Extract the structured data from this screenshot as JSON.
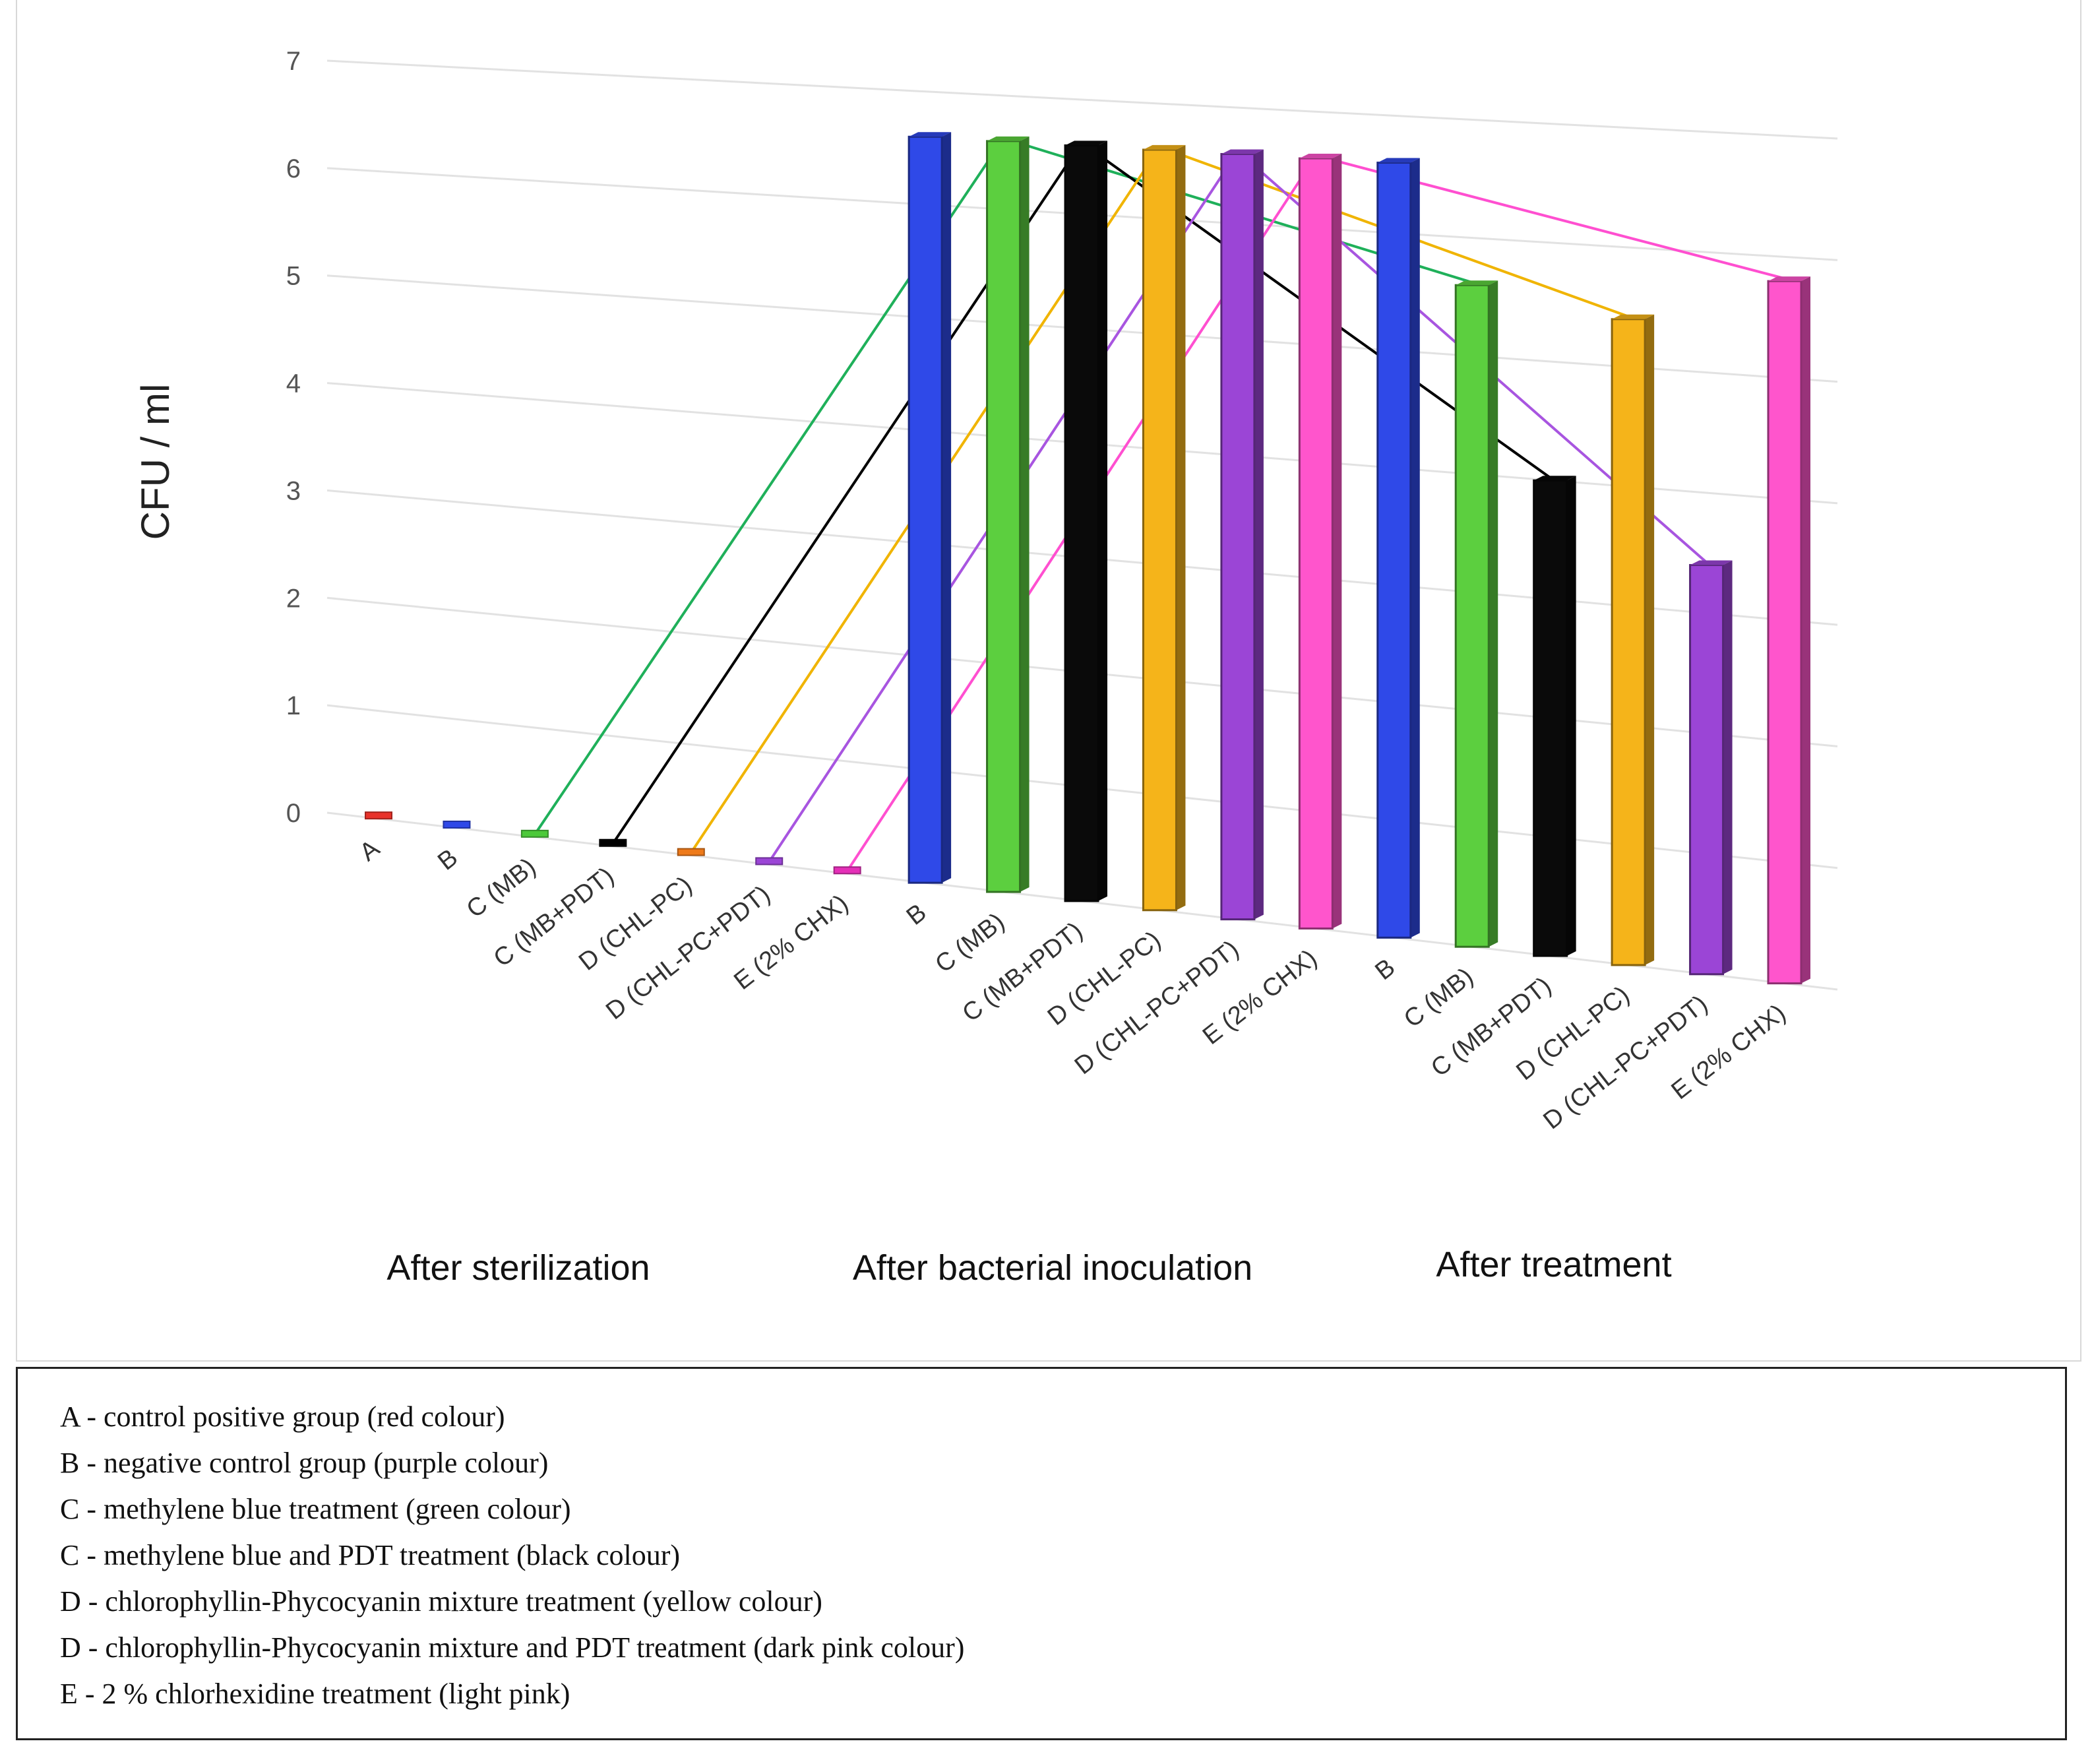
{
  "chart_data": {
    "type": "bar",
    "ylabel": "CFU / ml",
    "xlabel": "",
    "ylim": [
      0,
      7
    ],
    "y_ticks": [
      "0",
      "1",
      "2",
      "3",
      "4",
      "5",
      "6",
      "7"
    ],
    "grid": true,
    "groups": [
      "After sterilization",
      "After bacterial inoculation",
      "After treatment"
    ],
    "categories": [
      "A",
      "B",
      "C (MB)",
      "C (MB+PDT)",
      "D (CHL-PC)",
      "D (CHL-PC+PDT)",
      "E (2% CHX)",
      "B",
      "C (MB)",
      "C (MB+PDT)",
      "D (CHL-PC)",
      "D (CHL-PC+PDT)",
      "E (2% CHX)",
      "B",
      "C (MB)",
      "C (MB+PDT)",
      "D (CHL-PC)",
      "D (CHL-PC+PDT)",
      "E (2% CHX)"
    ],
    "values": [
      0,
      0,
      0,
      0,
      0,
      0,
      0,
      6.6,
      6.6,
      6.6,
      6.6,
      6.6,
      6.6,
      6.6,
      5.6,
      4.0,
      5.4,
      3.4,
      5.8
    ],
    "bar_colors": [
      "#e8322a",
      "#2f49e8",
      "#4cc93a",
      "#000000",
      "#ee7a1a",
      "#9b45d6",
      "#e52fb8",
      "#2f49e8",
      "#5ccf3f",
      "#0a0a0a",
      "#f5b41a",
      "#9b45d6",
      "#ff55cc",
      "#2f49e8",
      "#5ccf3f",
      "#0a0a0a",
      "#f5b41a",
      "#9b45d6",
      "#ff55cc"
    ],
    "series_lines": [
      {
        "color": "#1fb05a",
        "indices": [
          2,
          8,
          14
        ]
      },
      {
        "color": "#000000",
        "indices": [
          3,
          9,
          15
        ]
      },
      {
        "color": "#f0b400",
        "indices": [
          4,
          10,
          16
        ]
      },
      {
        "color": "#a855e0",
        "indices": [
          5,
          11,
          17
        ]
      },
      {
        "color": "#ff4fd0",
        "indices": [
          6,
          12,
          18
        ]
      }
    ]
  },
  "legend": [
    "A - control positive group (red colour)",
    "B - negative control group (purple colour)",
    "C - methylene blue treatment (green colour)",
    "C - methylene blue and PDT treatment (black colour)",
    "D - chlorophyllin-Phycocyanin mixture treatment (yellow colour)",
    "D - chlorophyllin-Phycocyanin mixture and PDT treatment (dark pink colour)",
    "E - 2 % chlorhexidine treatment (light pink)"
  ]
}
